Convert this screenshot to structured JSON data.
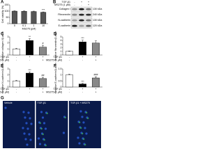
{
  "chart_data": [
    {
      "type": "bar",
      "panel": "A",
      "ylabel": "Cell viability (%)",
      "xlabel": "MS275 (μM)",
      "categories": [
        "0",
        "0.1",
        "1",
        "10"
      ],
      "values": [
        100,
        99,
        97,
        91
      ],
      "errors": [
        3,
        3,
        3,
        3
      ],
      "colors": [
        "#555555",
        "#555555",
        "#555555",
        "#555555"
      ],
      "annotations": [
        null,
        null,
        null,
        "***"
      ],
      "ylim": [
        0,
        150
      ],
      "yticks": [
        0,
        50,
        100,
        150
      ]
    },
    {
      "type": "bar",
      "panel": "C",
      "ylabel": "Relative collagen I/β-actin",
      "conditions": [
        {
          "name": "TGF-β1",
          "values": [
            "-",
            "+",
            "+"
          ]
        },
        {
          "name": "MS275 (1 μM)",
          "values": [
            "-",
            "-",
            "+"
          ]
        }
      ],
      "values": [
        1,
        2.4,
        1.3
      ],
      "errors": [
        0.1,
        0.3,
        0.3
      ],
      "colors": [
        "#ffffff",
        "#000000",
        "#888888"
      ],
      "annotations": [
        null,
        "**",
        "#"
      ],
      "ylim": [
        0,
        3
      ],
      "yticks": [
        0,
        1,
        2,
        3
      ]
    },
    {
      "type": "bar",
      "panel": "D",
      "ylabel": "Relative fibronectin/β-actin",
      "conditions": [
        {
          "name": "TGF-β1",
          "values": [
            "-",
            "+",
            "+"
          ]
        },
        {
          "name": "MS275 (1 μM)",
          "values": [
            "-",
            "-",
            "+"
          ]
        }
      ],
      "values": [
        1,
        3.6,
        3.3
      ],
      "errors": [
        0.1,
        0.5,
        0.6
      ],
      "colors": [
        "#ffffff",
        "#000000",
        "#888888"
      ],
      "annotations": [
        null,
        "***",
        null
      ],
      "ylim": [
        0,
        5
      ],
      "yticks": [
        0,
        1,
        2,
        3,
        4,
        5
      ]
    },
    {
      "type": "bar",
      "panel": "E",
      "ylabel": "Relative N-cadherin/β-actin",
      "conditions": [
        {
          "name": "TGF-β1",
          "values": [
            "-",
            "+",
            "+"
          ]
        },
        {
          "name": "MS275 (1 μM)",
          "values": [
            "-",
            "-",
            "+"
          ]
        }
      ],
      "values": [
        1,
        2.3,
        1.4
      ],
      "errors": [
        0.1,
        0.2,
        0.2
      ],
      "colors": [
        "#ffffff",
        "#000000",
        "#888888"
      ],
      "annotations": [
        null,
        "***",
        "##"
      ],
      "ylim": [
        0,
        3
      ],
      "yticks": [
        0,
        1,
        2,
        3
      ]
    },
    {
      "type": "bar",
      "panel": "F",
      "ylabel": "Relative E-cadherin/β-actin",
      "conditions": [
        {
          "name": "TGF-β1",
          "values": [
            "-",
            "+",
            "+"
          ]
        },
        {
          "name": "MS275 (1 μM)",
          "values": [
            "-",
            "-",
            "+"
          ]
        }
      ],
      "values": [
        1,
        0.25,
        0.75
      ],
      "errors": [
        0.05,
        0.05,
        0.1
      ],
      "colors": [
        "#ffffff",
        "#000000",
        "#888888"
      ],
      "annotations": [
        null,
        "***",
        "###"
      ],
      "ylim": [
        0,
        1.5
      ],
      "yticks": [
        0,
        0.5,
        1,
        1.5
      ]
    }
  ],
  "blot": {
    "panel": "B",
    "conditions": [
      {
        "name": "TGF-β1",
        "values": [
          "-",
          "+",
          "+"
        ]
      },
      {
        "name": "MS275 (1 μM)",
        "values": [
          "-",
          "-",
          "+"
        ]
      }
    ],
    "bands": [
      {
        "name": "Collagen I",
        "size": "130 kDa"
      },
      {
        "name": "Fibronectin",
        "size": "240 kDa"
      },
      {
        "name": "N-cadherin",
        "size": "130 kDa"
      },
      {
        "name": "E-cadherin",
        "size": "120 kDa"
      }
    ]
  },
  "images": {
    "panel": "G",
    "labels": [
      "Vehicle",
      "TGF-β1",
      "TGF-β1 + MS275"
    ]
  }
}
